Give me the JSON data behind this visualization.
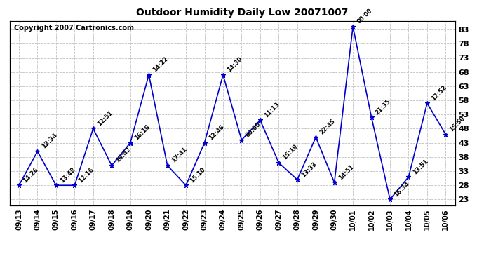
{
  "title": "Outdoor Humidity Daily Low 20071007",
  "copyright": "Copyright 2007 Cartronics.com",
  "line_color": "#0000cc",
  "background_color": "#ffffff",
  "grid_color": "#c0c0c0",
  "x_labels": [
    "09/13",
    "09/14",
    "09/15",
    "09/16",
    "09/17",
    "09/18",
    "09/19",
    "09/20",
    "09/21",
    "09/22",
    "09/23",
    "09/24",
    "09/25",
    "09/26",
    "09/27",
    "09/28",
    "09/29",
    "09/30",
    "10/01",
    "10/02",
    "10/03",
    "10/04",
    "10/05",
    "10/06"
  ],
  "y_values": [
    28,
    40,
    28,
    28,
    48,
    35,
    43,
    67,
    35,
    28,
    43,
    67,
    44,
    51,
    36,
    30,
    45,
    29,
    84,
    52,
    23,
    31,
    57,
    46
  ],
  "point_labels": [
    "14:26",
    "12:34",
    "13:48",
    "12:16",
    "12:51",
    "16:42",
    "16:16",
    "14:22",
    "17:41",
    "15:10",
    "12:46",
    "14:30",
    "00:00",
    "11:13",
    "15:19",
    "13:33",
    "22:45",
    "14:51",
    "00:00",
    "21:35",
    "16:34",
    "13:51",
    "12:52",
    "15:50"
  ],
  "ylim_min": 21,
  "ylim_max": 86,
  "yticks": [
    23,
    28,
    33,
    38,
    43,
    48,
    53,
    58,
    63,
    68,
    73,
    78,
    83
  ]
}
